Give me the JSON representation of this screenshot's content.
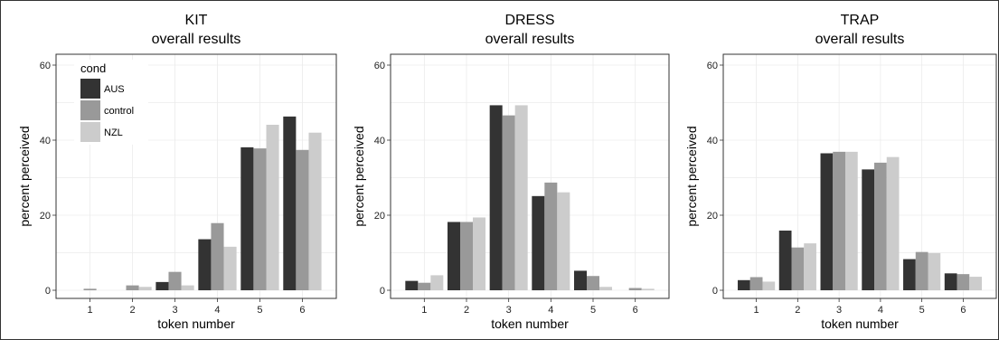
{
  "colors": {
    "AUS": "#333333",
    "control": "#999999",
    "NZL": "#cccccc"
  },
  "legend": {
    "title": "cond",
    "entries": [
      "AUS",
      "control",
      "NZL"
    ]
  },
  "chart_data": [
    {
      "type": "bar",
      "title": "KIT",
      "subtitle": "overall results",
      "xlabel": "token number",
      "ylabel": "percent perceived",
      "categories": [
        "1",
        "2",
        "3",
        "4",
        "5",
        "6"
      ],
      "yticks": [
        0,
        20,
        40,
        60
      ],
      "ylim": [
        -1,
        62
      ],
      "grid": true,
      "legend_position": "top-left",
      "series": [
        {
          "name": "AUS",
          "values": [
            0.0,
            0.0,
            2.2,
            13.6,
            38.1,
            46.3
          ]
        },
        {
          "name": "control",
          "values": [
            0.4,
            1.3,
            4.9,
            17.9,
            37.8,
            37.4
          ]
        },
        {
          "name": "NZL",
          "values": [
            0.0,
            0.9,
            1.3,
            11.6,
            44.1,
            42.0
          ]
        }
      ]
    },
    {
      "type": "bar",
      "title": "DRESS",
      "subtitle": "overall results",
      "xlabel": "token number",
      "ylabel": "percent perceived",
      "categories": [
        "1",
        "2",
        "3",
        "4",
        "5",
        "6"
      ],
      "yticks": [
        0,
        20,
        40,
        60
      ],
      "ylim": [
        -1,
        62
      ],
      "grid": true,
      "series": [
        {
          "name": "AUS",
          "values": [
            2.5,
            18.2,
            49.3,
            25.1,
            5.2,
            0.0
          ]
        },
        {
          "name": "control",
          "values": [
            2.0,
            18.2,
            46.6,
            28.7,
            3.8,
            0.6
          ]
        },
        {
          "name": "NZL",
          "values": [
            4.0,
            19.4,
            49.3,
            26.1,
            0.9,
            0.4
          ]
        }
      ]
    },
    {
      "type": "bar",
      "title": "TRAP",
      "subtitle": "overall results",
      "xlabel": "token number",
      "ylabel": "percent perceived",
      "categories": [
        "1",
        "2",
        "3",
        "4",
        "5",
        "6"
      ],
      "yticks": [
        0,
        20,
        40,
        60
      ],
      "ylim": [
        -1,
        62
      ],
      "grid": true,
      "series": [
        {
          "name": "AUS",
          "values": [
            2.7,
            15.9,
            36.5,
            32.2,
            8.3,
            4.5
          ]
        },
        {
          "name": "control",
          "values": [
            3.5,
            11.4,
            36.9,
            34.0,
            10.2,
            4.3
          ]
        },
        {
          "name": "NZL",
          "values": [
            2.3,
            12.5,
            36.9,
            35.5,
            9.9,
            3.6
          ]
        }
      ]
    }
  ]
}
